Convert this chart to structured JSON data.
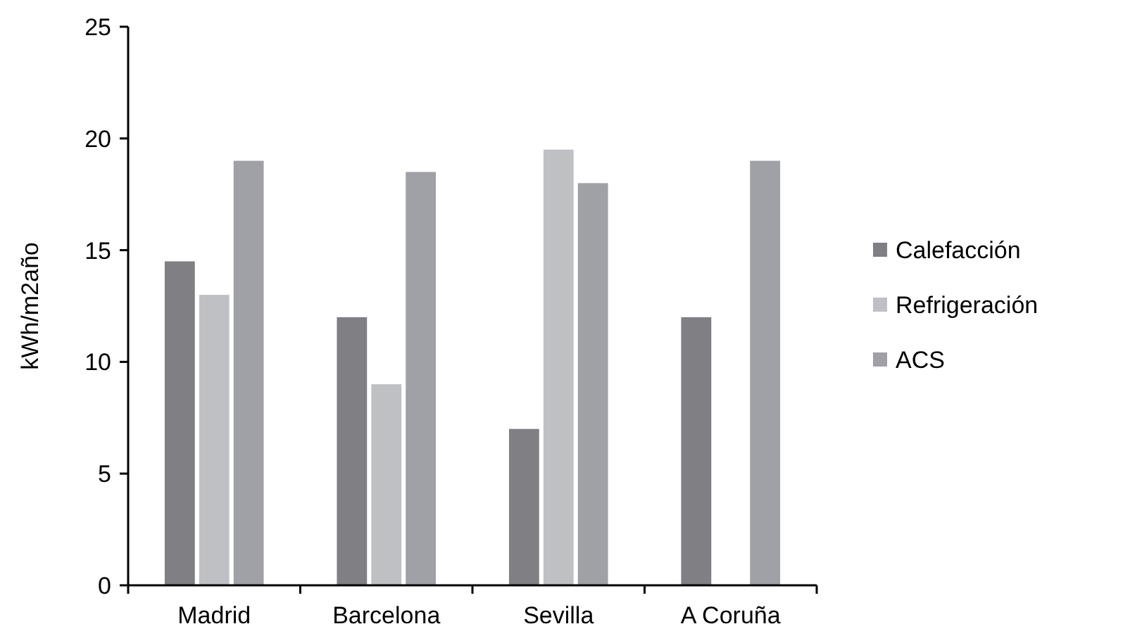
{
  "chart_data": {
    "type": "bar",
    "ylabel": "kWh/m2año",
    "categories": [
      "Madrid",
      "Barcelona",
      "Sevilla",
      "A Coruña"
    ],
    "series": [
      {
        "name": "Calefacción",
        "color": "#7f7f84",
        "values": [
          14.5,
          12,
          7,
          12
        ]
      },
      {
        "name": "Refrigeración",
        "color": "#bec0c3",
        "values": [
          13,
          9,
          19.5,
          null
        ]
      },
      {
        "name": "ACS",
        "color": "#9fa1a6",
        "values": [
          19,
          18.5,
          18,
          19
        ]
      }
    ],
    "ylim": [
      0,
      25
    ],
    "yticks": [
      0,
      5,
      10,
      15,
      20,
      25
    ],
    "grid": false,
    "legend": "right"
  }
}
